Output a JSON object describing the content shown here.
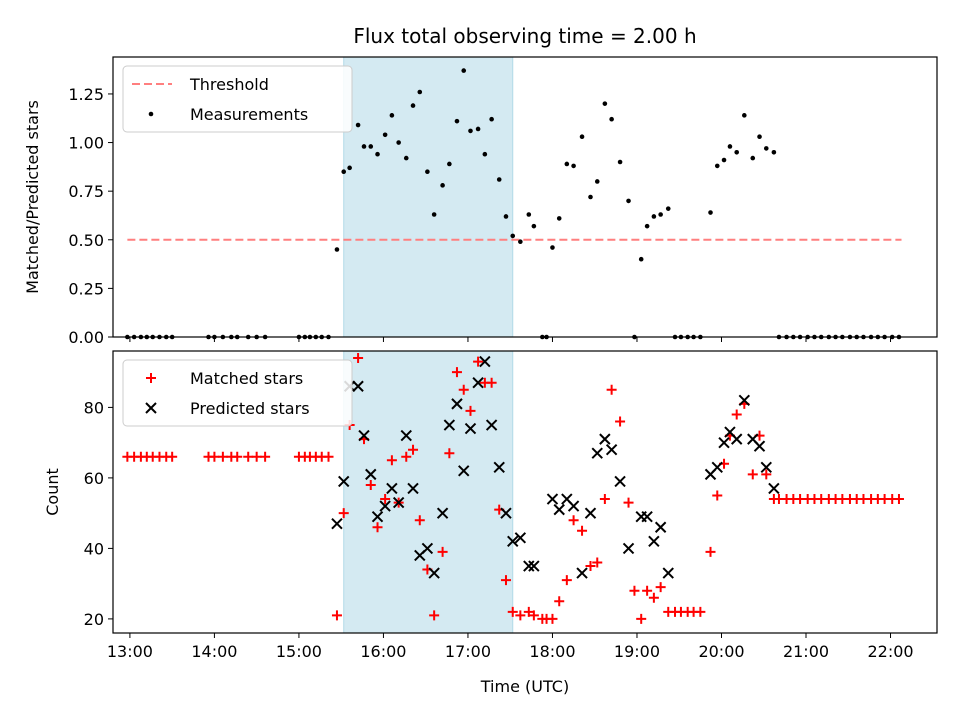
{
  "chart_data": [
    {
      "type": "scatter",
      "title": "Flux total observing time = 2.00 h",
      "ylabel": "Matched/Predicted stars",
      "xlabel": "",
      "xlim": [
        12.8,
        22.55
      ],
      "ylim": [
        0,
        1.44
      ],
      "x_ticks": [
        13,
        14,
        15,
        16,
        17,
        18,
        19,
        20,
        21,
        22
      ],
      "y_ticks": [
        0.0,
        0.25,
        0.5,
        0.75,
        1.0,
        1.25
      ],
      "y_tick_labels": [
        "0.00",
        "0.25",
        "0.50",
        "0.75",
        "1.00",
        "1.25"
      ],
      "legend_position": "top-left",
      "shaded_span": {
        "x_start": 15.53,
        "x_end": 17.53,
        "color": "#add8e6"
      },
      "series": [
        {
          "name": "Threshold",
          "style": "dashed-line",
          "color": "#ff7f7f",
          "x": [
            12.97,
            22.13
          ],
          "y": [
            0.5,
            0.5
          ]
        },
        {
          "name": "Measurements",
          "style": "dot",
          "color": "#000000",
          "x": [
            12.97,
            13.05,
            13.13,
            13.2,
            13.27,
            13.35,
            13.43,
            13.5,
            13.93,
            14.0,
            14.1,
            14.2,
            14.27,
            14.4,
            14.5,
            14.6,
            15.0,
            15.07,
            15.13,
            15.2,
            15.27,
            15.35,
            15.45,
            15.53,
            15.6,
            15.7,
            15.77,
            15.85,
            15.93,
            16.02,
            16.1,
            16.18,
            16.27,
            16.35,
            16.43,
            16.52,
            16.6,
            16.7,
            16.78,
            16.87,
            16.95,
            17.03,
            17.12,
            17.2,
            17.28,
            17.37,
            17.45,
            17.53,
            17.62,
            17.72,
            17.78,
            17.88,
            17.93,
            18.0,
            18.08,
            18.17,
            18.25,
            18.35,
            18.45,
            18.53,
            18.62,
            18.7,
            18.8,
            18.9,
            18.97,
            19.05,
            19.12,
            19.2,
            19.28,
            19.37,
            19.45,
            19.52,
            19.6,
            19.67,
            19.75,
            19.87,
            19.95,
            20.03,
            20.1,
            20.18,
            20.27,
            20.37,
            20.45,
            20.53,
            20.62,
            20.68,
            20.77,
            20.85,
            20.93,
            21.02,
            21.1,
            21.18,
            21.27,
            21.35,
            21.43,
            21.52,
            21.6,
            21.68,
            21.77,
            21.85,
            21.93,
            22.02,
            22.1
          ],
          "y": [
            0,
            0,
            0,
            0,
            0,
            0,
            0,
            0,
            0,
            0,
            0,
            0,
            0,
            0,
            0,
            0,
            0,
            0,
            0,
            0,
            0,
            0,
            0.45,
            0.85,
            0.87,
            1.09,
            0.98,
            0.98,
            0.94,
            1.04,
            1.14,
            1.0,
            0.92,
            1.19,
            1.26,
            0.85,
            0.63,
            0.78,
            0.89,
            1.11,
            1.37,
            1.06,
            1.07,
            0.94,
            1.12,
            0.81,
            0.62,
            0.52,
            0.49,
            0.63,
            0.57,
            0,
            0,
            0.46,
            0.61,
            0.89,
            0.88,
            1.03,
            0.72,
            0.8,
            1.2,
            1.12,
            0.9,
            0.7,
            0,
            0.4,
            0.57,
            0.62,
            0.63,
            0.66,
            0,
            0,
            0,
            0,
            0,
            0.64,
            0.88,
            0.91,
            0.98,
            0.95,
            1.14,
            0.92,
            1.03,
            0.97,
            0.95,
            0,
            0,
            0,
            0,
            0,
            0,
            0,
            0,
            0,
            0,
            0,
            0,
            0,
            0,
            0,
            0,
            0,
            0
          ]
        }
      ]
    },
    {
      "type": "scatter",
      "title": "",
      "ylabel": "Count",
      "xlabel": "Time (UTC)",
      "xlim": [
        12.8,
        22.55
      ],
      "ylim": [
        16,
        96
      ],
      "x_ticks": [
        13,
        14,
        15,
        16,
        17,
        18,
        19,
        20,
        21,
        22
      ],
      "x_tick_labels": [
        "13:00",
        "14:00",
        "15:00",
        "16:00",
        "17:00",
        "18:00",
        "19:00",
        "20:00",
        "21:00",
        "22:00"
      ],
      "y_ticks": [
        20,
        40,
        60,
        80
      ],
      "y_tick_labels": [
        "20",
        "40",
        "60",
        "80"
      ],
      "legend_position": "top-left",
      "shaded_span": {
        "x_start": 15.53,
        "x_end": 17.53,
        "color": "#add8e6"
      },
      "series": [
        {
          "name": "Matched stars",
          "style": "plus",
          "color": "#ff0000",
          "x": [
            12.97,
            13.05,
            13.13,
            13.2,
            13.27,
            13.35,
            13.43,
            13.5,
            13.93,
            14.0,
            14.1,
            14.2,
            14.27,
            14.4,
            14.5,
            14.6,
            15.0,
            15.07,
            15.13,
            15.2,
            15.27,
            15.35,
            15.45,
            15.53,
            15.6,
            15.7,
            15.77,
            15.85,
            15.93,
            16.02,
            16.1,
            16.18,
            16.27,
            16.35,
            16.43,
            16.52,
            16.6,
            16.7,
            16.78,
            16.87,
            16.95,
            17.03,
            17.12,
            17.2,
            17.28,
            17.37,
            17.45,
            17.53,
            17.62,
            17.72,
            17.78,
            17.88,
            17.93,
            18.0,
            18.08,
            18.17,
            18.25,
            18.35,
            18.45,
            18.53,
            18.62,
            18.7,
            18.8,
            18.9,
            18.97,
            19.05,
            19.12,
            19.2,
            19.28,
            19.37,
            19.45,
            19.52,
            19.6,
            19.67,
            19.75,
            19.87,
            19.95,
            20.03,
            20.1,
            20.18,
            20.27,
            20.37,
            20.45,
            20.53,
            20.62,
            20.68,
            20.77,
            20.85,
            20.93,
            21.02,
            21.1,
            21.18,
            21.27,
            21.35,
            21.43,
            21.52,
            21.6,
            21.68,
            21.77,
            21.85,
            21.93,
            22.02,
            22.1
          ],
          "y": [
            66,
            66,
            66,
            66,
            66,
            66,
            66,
            66,
            66,
            66,
            66,
            66,
            66,
            66,
            66,
            66,
            66,
            66,
            66,
            66,
            66,
            66,
            21,
            50,
            75,
            94,
            71,
            58,
            46,
            54,
            65,
            53,
            66,
            68,
            48,
            34,
            21,
            39,
            67,
            90,
            85,
            79,
            93,
            87,
            87,
            51,
            31,
            22,
            21,
            22,
            21,
            20,
            20,
            20,
            25,
            31,
            48,
            45,
            35,
            36,
            54,
            85,
            76,
            53,
            28,
            20,
            28,
            26,
            29,
            22,
            22,
            22,
            22,
            22,
            22,
            39,
            55,
            64,
            72,
            78,
            81,
            61,
            72,
            61,
            54,
            54,
            54,
            54,
            54,
            54,
            54,
            54,
            54,
            54,
            54,
            54,
            54,
            54,
            54,
            54,
            54,
            54,
            54
          ]
        },
        {
          "name": "Predicted stars",
          "style": "x",
          "color": "#000000",
          "x": [
            15.45,
            15.53,
            15.6,
            15.7,
            15.77,
            15.85,
            15.93,
            16.02,
            16.1,
            16.18,
            16.27,
            16.35,
            16.43,
            16.52,
            16.6,
            16.7,
            16.78,
            16.87,
            16.95,
            17.03,
            17.12,
            17.2,
            17.28,
            17.37,
            17.45,
            17.53,
            17.62,
            17.72,
            17.78,
            18.0,
            18.08,
            18.17,
            18.25,
            18.35,
            18.45,
            18.53,
            18.62,
            18.7,
            18.8,
            18.9,
            19.05,
            19.12,
            19.2,
            19.28,
            19.37,
            19.87,
            19.95,
            20.03,
            20.1,
            20.18,
            20.27,
            20.37,
            20.45,
            20.53,
            20.62
          ],
          "y": [
            47,
            59,
            86,
            86,
            72,
            61,
            49,
            52,
            57,
            53,
            72,
            57,
            38,
            40,
            33,
            50,
            75,
            81,
            62,
            74,
            87,
            93,
            75,
            63,
            50,
            42,
            43,
            35,
            35,
            54,
            51,
            54,
            52,
            33,
            50,
            67,
            71,
            68,
            59,
            40,
            49,
            49,
            42,
            46,
            33,
            61,
            63,
            70,
            73,
            71,
            82,
            71,
            69,
            63,
            57
          ]
        }
      ]
    }
  ]
}
